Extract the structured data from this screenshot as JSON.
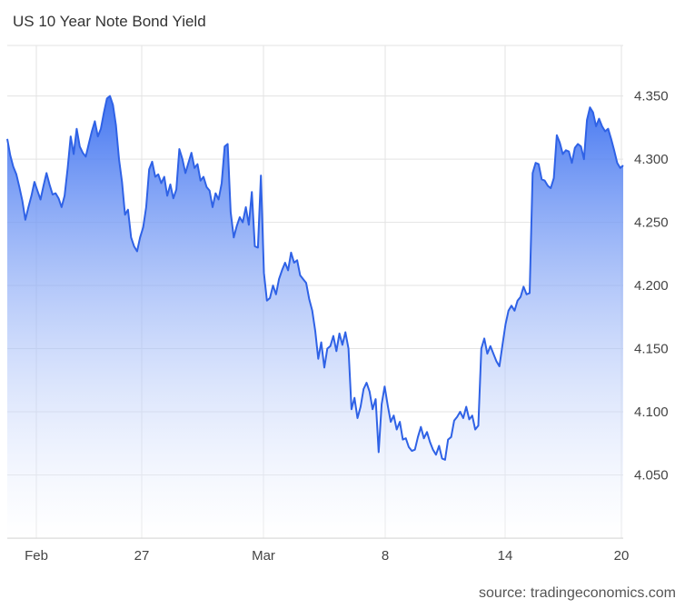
{
  "title": "US 10 Year Note Bond Yield",
  "source": "source: tradingeconomics.com",
  "colors": {
    "line": "#2f62e6",
    "fill_top": "#3a6ff0",
    "fill_bottom": "#ffffff",
    "grid": "#e3e3e3"
  },
  "chart_data": {
    "type": "area",
    "title": "US 10 Year Note Bond Yield",
    "xlabel": "",
    "ylabel": "",
    "x_tick_labels": [
      "Feb",
      "27",
      "Mar",
      "8",
      "14",
      "20"
    ],
    "y_tick_labels": [
      "4.050",
      "4.100",
      "4.150",
      "4.200",
      "4.250",
      "4.300",
      "4.350"
    ],
    "y_ticks": [
      4.05,
      4.1,
      4.15,
      4.2,
      4.25,
      4.3,
      4.35
    ],
    "ylim": [
      4.0,
      4.39
    ],
    "grid": true,
    "series": [
      {
        "values": [
          4.316,
          4.303,
          4.294,
          4.288,
          4.278,
          4.267,
          4.252,
          4.262,
          4.271,
          4.282,
          4.275,
          4.268,
          4.279,
          4.289,
          4.28,
          4.272,
          4.273,
          4.269,
          4.262,
          4.271,
          4.293,
          4.318,
          4.304,
          4.324,
          4.31,
          4.305,
          4.302,
          4.312,
          4.322,
          4.33,
          4.318,
          4.324,
          4.337,
          4.348,
          4.35,
          4.343,
          4.327,
          4.3,
          4.282,
          4.256,
          4.26,
          4.238,
          4.231,
          4.227,
          4.238,
          4.246,
          4.262,
          4.292,
          4.298,
          4.286,
          4.288,
          4.281,
          4.286,
          4.271,
          4.28,
          4.269,
          4.276,
          4.308,
          4.3,
          4.289,
          4.297,
          4.305,
          4.293,
          4.296,
          4.283,
          4.286,
          4.278,
          4.275,
          4.262,
          4.273,
          4.268,
          4.281,
          4.31,
          4.312,
          4.258,
          4.238,
          4.247,
          4.254,
          4.25,
          4.262,
          4.248,
          4.274,
          4.231,
          4.23,
          4.287,
          4.21,
          4.188,
          4.19,
          4.2,
          4.193,
          4.205,
          4.212,
          4.218,
          4.212,
          4.226,
          4.218,
          4.22,
          4.208,
          4.205,
          4.202,
          4.189,
          4.18,
          4.164,
          4.142,
          4.155,
          4.135,
          4.15,
          4.152,
          4.16,
          4.148,
          4.162,
          4.153,
          4.163,
          4.15,
          4.102,
          4.111,
          4.095,
          4.104,
          4.118,
          4.123,
          4.116,
          4.102,
          4.11,
          4.068,
          4.106,
          4.12,
          4.105,
          4.092,
          4.097,
          4.086,
          4.092,
          4.078,
          4.079,
          4.072,
          4.069,
          4.07,
          4.08,
          4.088,
          4.079,
          4.084,
          4.076,
          4.07,
          4.066,
          4.073,
          4.063,
          4.062,
          4.078,
          4.08,
          4.093,
          4.096,
          4.1,
          4.095,
          4.104,
          4.094,
          4.097,
          4.086,
          4.089,
          4.15,
          4.158,
          4.146,
          4.152,
          4.146,
          4.14,
          4.136,
          4.153,
          4.169,
          4.18,
          4.184,
          4.18,
          4.188,
          4.191,
          4.199,
          4.193,
          4.194,
          4.289,
          4.297,
          4.296,
          4.284,
          4.283,
          4.279,
          4.277,
          4.285,
          4.319,
          4.313,
          4.304,
          4.307,
          4.306,
          4.297,
          4.309,
          4.312,
          4.31,
          4.3,
          4.331,
          4.341,
          4.337,
          4.326,
          4.332,
          4.326,
          4.322,
          4.324,
          4.316,
          4.307,
          4.297,
          4.293,
          4.295
        ]
      }
    ]
  }
}
